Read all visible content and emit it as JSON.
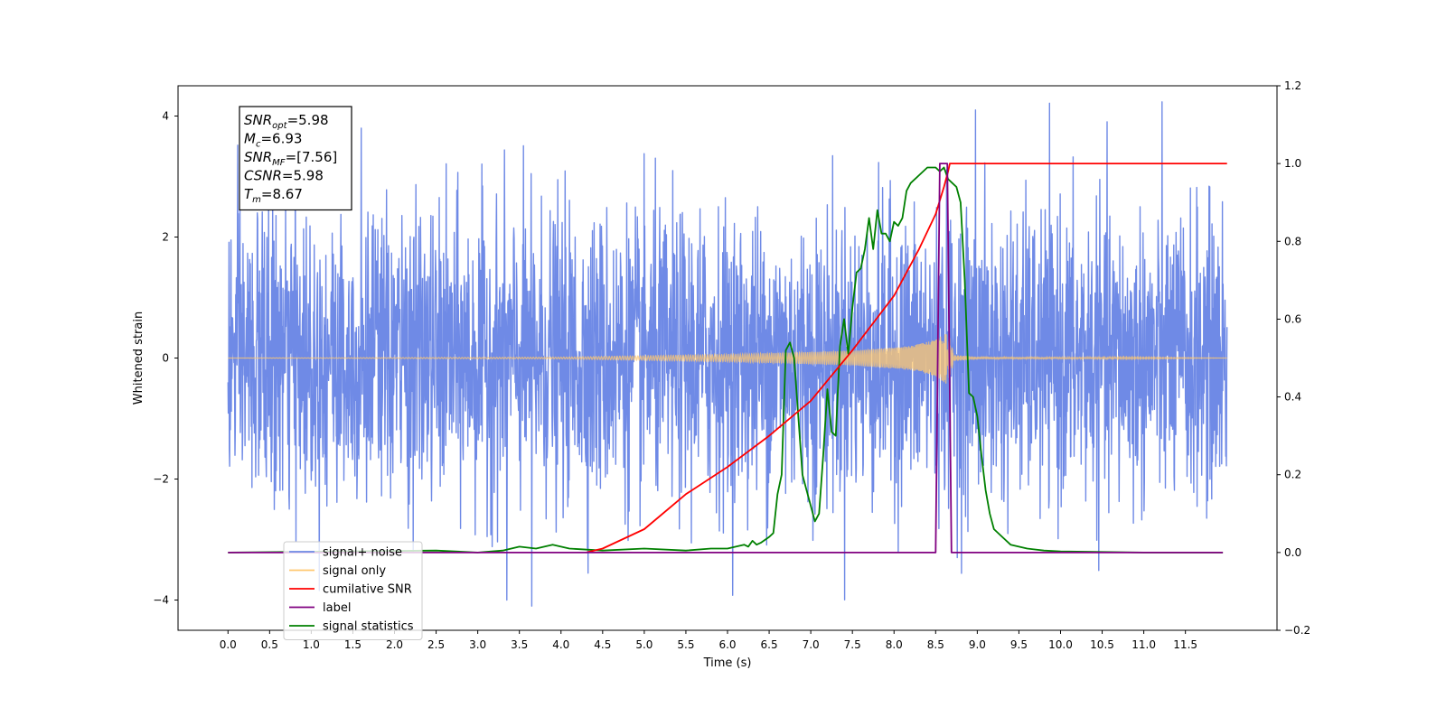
{
  "chart_data": {
    "type": "line",
    "xlabel": "Time (s)",
    "ylabel": "Whitened strain",
    "xlim": [
      -0.6,
      12.6
    ],
    "ylim": [
      -4.5,
      4.5
    ],
    "y2lim": [
      -0.2,
      1.2
    ],
    "x_ticks": [
      0.0,
      0.5,
      1.0,
      1.5,
      2.0,
      2.5,
      3.0,
      3.5,
      4.0,
      4.5,
      5.0,
      5.5,
      6.0,
      6.5,
      7.0,
      7.5,
      8.0,
      8.5,
      9.0,
      9.5,
      10.0,
      10.5,
      11.0,
      11.5
    ],
    "x_tick_labels": [
      "0.0",
      "0.5",
      "1.0",
      "1.5",
      "2.0",
      "2.5",
      "3.0",
      "3.5",
      "4.0",
      "4.5",
      "5.0",
      "5.5",
      "6.0",
      "6.5",
      "7.0",
      "7.5",
      "8.0",
      "8.5",
      "9.0",
      "9.5",
      "10.0",
      "10.5",
      "11.0",
      "11.5"
    ],
    "y_ticks": [
      -4,
      -2,
      0,
      2,
      4
    ],
    "y_tick_labels": [
      "−4",
      "−2",
      "0",
      "2",
      "4"
    ],
    "y2_ticks": [
      -0.2,
      0.0,
      0.2,
      0.4,
      0.6,
      0.8,
      1.0,
      1.2
    ],
    "y2_tick_labels": [
      "−0.2",
      "0.0",
      "0.2",
      "0.4",
      "0.6",
      "0.8",
      "1.0",
      "1.2"
    ],
    "grid": false,
    "legend_position": "lower-left",
    "legend": [
      {
        "label": "signal+ noise",
        "color": "#6f8ae6"
      },
      {
        "label": "signal only",
        "color": "#ffc870"
      },
      {
        "label": "cumilative SNR",
        "color": "#ff0000"
      },
      {
        "label": "label",
        "color": "#800080"
      },
      {
        "label": "signal statistics",
        "color": "#008000"
      }
    ],
    "annotation": {
      "lines": [
        {
          "main": "SNR",
          "sub": "opt",
          "value": "=5.98"
        },
        {
          "main": "M",
          "sub": "c",
          "value": "=6.93"
        },
        {
          "main": "SNR",
          "sub": "MF",
          "value": "=[7.56]"
        },
        {
          "main": "CSNR",
          "sub": "",
          "value": "=5.98"
        },
        {
          "main": "T",
          "sub": "m",
          "value": "=8.67"
        }
      ]
    },
    "series": [
      {
        "name": "signal+ noise",
        "axis": "left",
        "color": "#6f8ae6",
        "kind": "noise",
        "x_start": 0.0,
        "x_end": 12.0,
        "typical_range": [
          -2.6,
          2.6
        ],
        "extreme_values": [
          {
            "x": 1.6,
            "y": 3.8
          },
          {
            "x": 8.98,
            "y": 4.1
          },
          {
            "x": 3.35,
            "y": -4.0
          },
          {
            "x": 3.65,
            "y": -4.1
          }
        ]
      },
      {
        "name": "signal only",
        "axis": "left",
        "color": "#ffc870",
        "kind": "chirp",
        "x_start": 0.0,
        "x_end": 12.0,
        "merger_time": 8.67,
        "envelope": [
          [
            0.0,
            0.0
          ],
          [
            4.0,
            0.015
          ],
          [
            6.0,
            0.06
          ],
          [
            7.5,
            0.12
          ],
          [
            8.2,
            0.2
          ],
          [
            8.5,
            0.3
          ],
          [
            8.65,
            0.45
          ],
          [
            8.72,
            0.05
          ],
          [
            9.0,
            0.02
          ],
          [
            12.0,
            0.0
          ]
        ]
      },
      {
        "name": "cumilative SNR",
        "axis": "right",
        "color": "#ff0000",
        "x": [
          4.3,
          4.5,
          5.0,
          5.5,
          6.0,
          6.5,
          7.0,
          7.5,
          8.0,
          8.3,
          8.5,
          8.6,
          8.65,
          8.67,
          12.0
        ],
        "y": [
          0.0,
          0.01,
          0.06,
          0.15,
          0.22,
          0.3,
          0.39,
          0.52,
          0.66,
          0.78,
          0.87,
          0.94,
          0.98,
          1.0,
          1.0
        ]
      },
      {
        "name": "label",
        "axis": "right",
        "color": "#800080",
        "x": [
          0.0,
          8.5,
          8.55,
          8.64,
          8.69,
          11.95
        ],
        "y": [
          0.0,
          0.0,
          1.0,
          1.0,
          0.0,
          0.0
        ]
      },
      {
        "name": "signal statistics",
        "axis": "right",
        "color": "#008000",
        "x": [
          0.0,
          2.5,
          3.0,
          3.3,
          3.5,
          3.7,
          3.9,
          4.1,
          4.5,
          5.0,
          5.5,
          5.8,
          6.0,
          6.2,
          6.25,
          6.3,
          6.35,
          6.4,
          6.5,
          6.55,
          6.6,
          6.65,
          6.7,
          6.75,
          6.8,
          6.85,
          6.9,
          7.0,
          7.05,
          7.1,
          7.15,
          7.2,
          7.25,
          7.3,
          7.35,
          7.4,
          7.45,
          7.5,
          7.55,
          7.6,
          7.65,
          7.7,
          7.75,
          7.8,
          7.85,
          7.9,
          7.95,
          8.0,
          8.05,
          8.1,
          8.15,
          8.2,
          8.3,
          8.4,
          8.5,
          8.55,
          8.6,
          8.65,
          8.7,
          8.75,
          8.8,
          8.85,
          8.9,
          8.95,
          9.0,
          9.05,
          9.1,
          9.15,
          9.2,
          9.3,
          9.4,
          9.6,
          9.8,
          10.0,
          11.0,
          11.95
        ],
        "y": [
          0.0,
          0.005,
          0.0,
          0.005,
          0.015,
          0.01,
          0.02,
          0.01,
          0.005,
          0.01,
          0.005,
          0.01,
          0.01,
          0.02,
          0.015,
          0.03,
          0.02,
          0.025,
          0.04,
          0.05,
          0.15,
          0.2,
          0.52,
          0.54,
          0.5,
          0.35,
          0.2,
          0.12,
          0.08,
          0.1,
          0.25,
          0.42,
          0.31,
          0.3,
          0.53,
          0.6,
          0.51,
          0.63,
          0.72,
          0.73,
          0.78,
          0.86,
          0.78,
          0.88,
          0.82,
          0.82,
          0.8,
          0.85,
          0.84,
          0.86,
          0.93,
          0.95,
          0.97,
          0.99,
          0.99,
          0.98,
          0.99,
          0.96,
          0.95,
          0.94,
          0.9,
          0.7,
          0.41,
          0.4,
          0.35,
          0.25,
          0.16,
          0.1,
          0.06,
          0.04,
          0.02,
          0.01,
          0.005,
          0.003,
          0.0,
          0.0
        ]
      }
    ]
  }
}
